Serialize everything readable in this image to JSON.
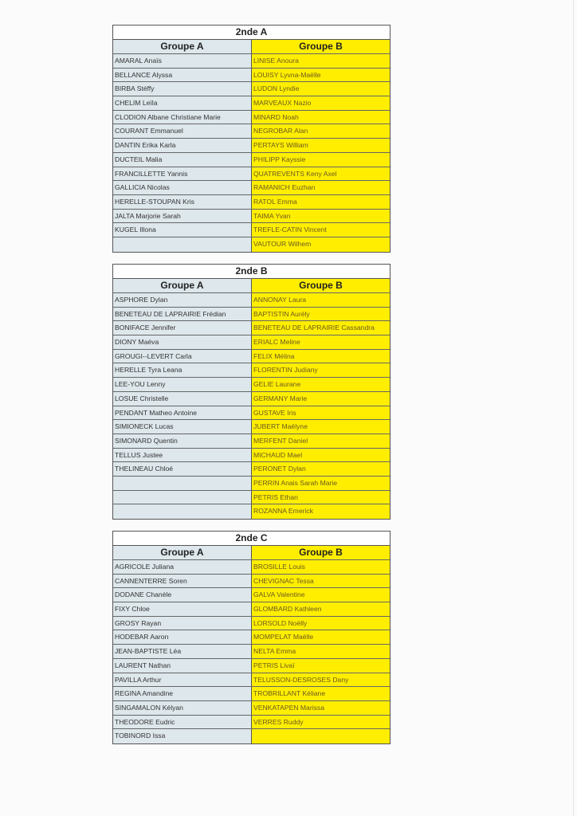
{
  "colors": {
    "groupA_bg": "#dde7ec",
    "groupB_bg": "#ffee00"
  },
  "tables": [
    {
      "title": "2nde A",
      "header_a": "Groupe A",
      "header_b": "Groupe B",
      "rows": [
        [
          "AMARAL Anaïs",
          "LINISE Anoura"
        ],
        [
          "BELLANCE Alyssa",
          "LOUISY Lyvna-Maëlle"
        ],
        [
          "BIRBA Stéffy",
          "LUDON Lyndie"
        ],
        [
          "CHELIM Leïla",
          "MARVEAUX Nazio"
        ],
        [
          "CLODION Albane Christiane Marie",
          "MINARD Noah"
        ],
        [
          "COURANT Emmanuel",
          "NEGROBAR Alan"
        ],
        [
          "DANTIN Erika Karla",
          "PERTAYS William"
        ],
        [
          "DUCTEIL Malia",
          "PHILIPP Kayssie"
        ],
        [
          "FRANCILLETTE Yannis",
          "QUATREVENTS Keny Axel"
        ],
        [
          "GALLICIA Nicolas",
          "RAMANICH Euzhan"
        ],
        [
          "HERELLE-STOUPAN Kris",
          "RATOL Emma"
        ],
        [
          "JALTA Marjorie Sarah",
          "TAIMA Yvan"
        ],
        [
          "KUGEL Illona",
          "TREFLE-CATIN Vincent"
        ],
        [
          "",
          "VAUTOUR Wilhem"
        ]
      ]
    },
    {
      "title": "2nde B",
      "header_a": "Groupe A",
      "header_b": "Groupe B",
      "rows": [
        [
          "ASPHORE Dylan",
          "ANNONAY Laura"
        ],
        [
          "BENETEAU DE LAPRAIRIE Frédian",
          "BAPTISTIN Aurély"
        ],
        [
          "BONIFACE Jennifer",
          "BENETEAU DE LAPRAIRIE Cassandra"
        ],
        [
          "DIONY Maéva",
          "ERIALC Meline"
        ],
        [
          "GROUGI--LEVERT Carla",
          "FELIX Mélina"
        ],
        [
          "HERELLE Tyra Leana",
          "FLORENTIN Judiany"
        ],
        [
          "LEE-YOU Lenny",
          "GELIE Laurane"
        ],
        [
          "LOSUE Christelle",
          "GERMANY Marie"
        ],
        [
          "PENDANT Matheo Antoine",
          "GUSTAVE Iris"
        ],
        [
          "SIMIONECK Lucas",
          "JUBERT Maëlyne"
        ],
        [
          "SIMONARD Quentin",
          "MERFENT Daniel"
        ],
        [
          "TELLUS Justee",
          "MICHAUD Mael"
        ],
        [
          "THELINEAU Chloé",
          "PERONET Dylan"
        ],
        [
          "",
          "PERRIN Anais Sarah Marie"
        ],
        [
          "",
          "PETRIS Ethan"
        ],
        [
          "",
          "ROZANNA Emerick"
        ]
      ]
    },
    {
      "title": "2nde C",
      "header_a": "Groupe A",
      "header_b": "Groupe B",
      "rows": [
        [
          "AGRICOLE Juliana",
          "BROSILLE Louis"
        ],
        [
          "CANNENTERRE Soren",
          "CHEVIGNAC Tessa"
        ],
        [
          "DODANE Chanèle",
          "GALVA Valentine"
        ],
        [
          "FIXY Chloe",
          "GLOMBARD Kathleen"
        ],
        [
          "GROSY Rayan",
          "LORSOLD Noëlly"
        ],
        [
          "HODEBAR Aaron",
          "MOMPELAT Maëlle"
        ],
        [
          "JEAN-BAPTISTE Léa",
          "NELTA Emma"
        ],
        [
          "LAURENT Nathan",
          "PETRIS Livaï"
        ],
        [
          "PAVILLA Arthur",
          "TELUSSON-DESROSES Dany"
        ],
        [
          "REGINA Amandine",
          "TROBRILLANT Kéliane"
        ],
        [
          "SINGAMALON Kélyan",
          "VENKATAPEN Marissa"
        ],
        [
          "THEODORE Eudric",
          "VERRES Ruddy"
        ],
        [
          "TOBINORD Issa",
          ""
        ]
      ]
    }
  ]
}
